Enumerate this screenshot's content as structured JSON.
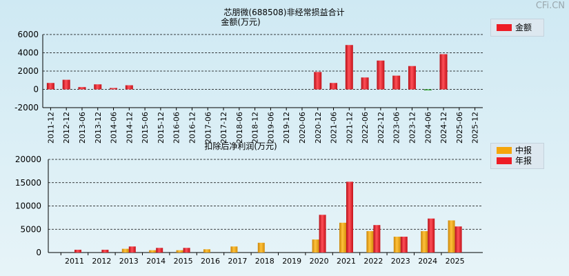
{
  "watermark": "CFi.CN",
  "colors": {
    "annual": "#ee1c25",
    "interim": "#f5a50a",
    "grid": "#000000"
  },
  "chart_data": [
    {
      "type": "bar",
      "title": "芯朋微(688508)非经常损益合计",
      "ylabel": "金额(万元)",
      "legend": [
        "金额"
      ],
      "ylim": [
        -2000,
        6000
      ],
      "yticks": [
        -2000,
        0,
        2000,
        4000,
        6000
      ],
      "categories": [
        "2011-12",
        "2012-12",
        "2013-06",
        "2013-12",
        "2014-06",
        "2014-12",
        "2015-06",
        "2015-12",
        "2016-06",
        "2016-12",
        "2017-06",
        "2017-12",
        "2018-06",
        "2018-12",
        "2019-06",
        "2019-12",
        "2020-06",
        "2020-12",
        "2021-06",
        "2021-12",
        "2022-06",
        "2022-12",
        "2023-06",
        "2023-12",
        "2024-06",
        "2024-12",
        "2025-06",
        "2025-12"
      ],
      "values": [
        700,
        1050,
        250,
        550,
        150,
        450,
        null,
        null,
        null,
        null,
        null,
        null,
        null,
        null,
        null,
        null,
        null,
        1900,
        700,
        4850,
        1300,
        3150,
        1500,
        2550,
        -100,
        3850,
        null,
        null
      ]
    },
    {
      "type": "bar",
      "title": "扣除后净利润(万元)",
      "legend": [
        "中报",
        "年报"
      ],
      "ylim": [
        0,
        20000
      ],
      "yticks": [
        0,
        5000,
        10000,
        15000,
        20000
      ],
      "categories": [
        "2011",
        "2012",
        "2013",
        "2014",
        "2015",
        "2016",
        "2017",
        "2018",
        "2019",
        "2020",
        "2021",
        "2022",
        "2023",
        "2024",
        "2025"
      ],
      "series": [
        {
          "name": "中报",
          "values": [
            null,
            null,
            800,
            500,
            500,
            700,
            1300,
            2100,
            null,
            2800,
            6400,
            4600,
            3400,
            4600,
            6900
          ]
        },
        {
          "name": "年报",
          "values": [
            600,
            600,
            1300,
            1000,
            1000,
            null,
            null,
            null,
            null,
            8100,
            15200,
            5900,
            3400,
            7300,
            5600
          ]
        }
      ]
    }
  ]
}
